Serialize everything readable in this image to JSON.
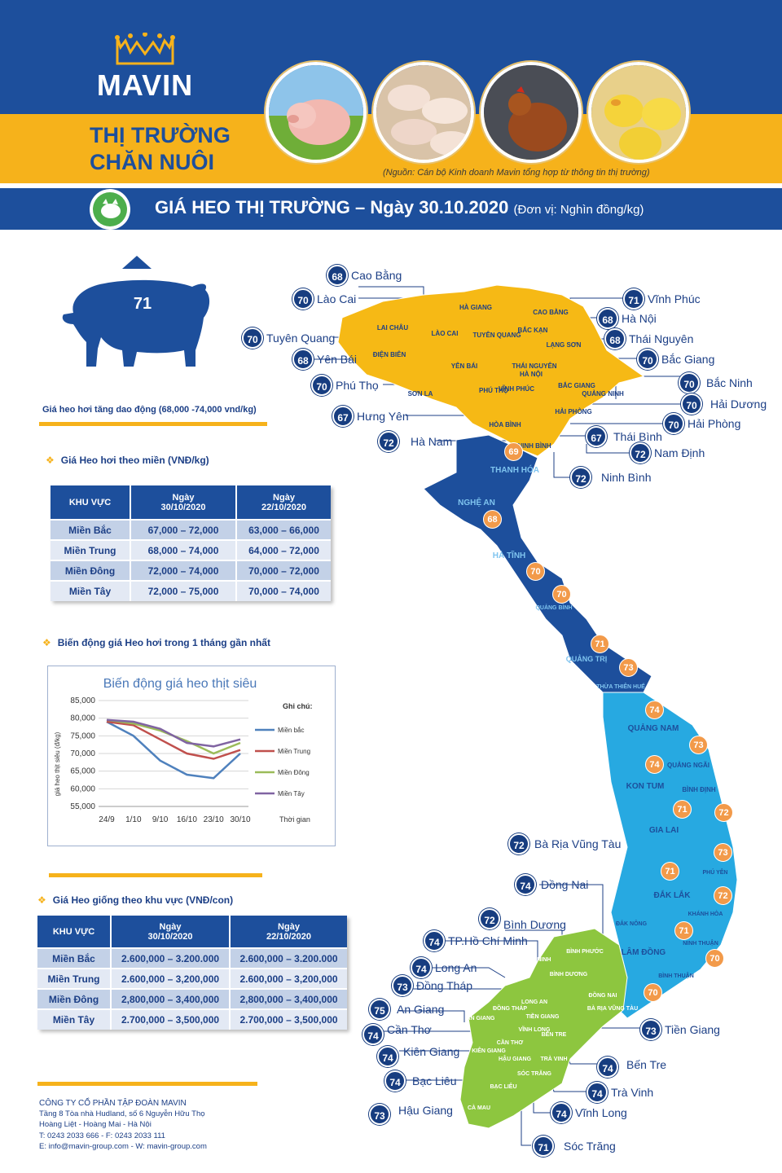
{
  "header": {
    "brand": "MAVIN",
    "title_line1": "THỊ TRƯỜNG",
    "title_line2": "CHĂN NUÔI",
    "source": "(Nguồn: Cán bộ Kinh doanh Mavin tổng hợp từ thông tin thị trường)"
  },
  "title_bar": {
    "title": "GIÁ HEO THỊ TRƯỜNG – Ngày 30.10.2020",
    "unit": "(Đơn vị: Nghìn đồng/kg)"
  },
  "summary": {
    "pig_price": "71",
    "trend_text": "Giá heo hơi tăng dao động (68,000 -74,000 vnd/kg)"
  },
  "region_table": {
    "heading": "Giá Heo hơi theo miền (VNĐ/kg)",
    "col_region": "KHU VỰC",
    "col_date1_line1": "Ngày",
    "col_date1_line2": "30/10/2020",
    "col_date2_line1": "Ngày",
    "col_date2_line2": "22/10/2020",
    "rows": [
      {
        "region": "Miền Bắc",
        "d1": "67,000 – 72,000",
        "d2": "63,000 – 66,000"
      },
      {
        "region": "Miền Trung",
        "d1": "68,000 – 74,000",
        "d2": "64,000 – 72,000"
      },
      {
        "region": "Miền Đông",
        "d1": "72,000 – 74,000",
        "d2": "70,000 – 72,000"
      },
      {
        "region": "Miền Tây",
        "d1": "72,000 – 75,000",
        "d2": "70,000 – 74,000"
      }
    ]
  },
  "chart_section": {
    "heading": "Biến động giá Heo hơi trong 1 tháng gần nhất"
  },
  "chart_data": {
    "type": "line",
    "title": "Biến động giá heo thịt siêu",
    "ylabel": "giá heo thịt siêu (đ/kg)",
    "xlabel": "Thời gian",
    "legend_title": "Ghi chú:",
    "legend_position": "right",
    "ylim": [
      55000,
      85000
    ],
    "y_ticks": [
      "55,000",
      "60,000",
      "65,000",
      "70,000",
      "75,000",
      "80,000",
      "85,000"
    ],
    "y_tick_values": [
      55000,
      60000,
      65000,
      70000,
      75000,
      80000,
      85000
    ],
    "categories": [
      "24/9",
      "1/10",
      "9/10",
      "16/10",
      "23/10",
      "30/10"
    ],
    "grid": true,
    "series": [
      {
        "name": "Miền bắc",
        "color": "#4f81bd",
        "values": [
          79000,
          75000,
          68000,
          64000,
          63000,
          70000
        ]
      },
      {
        "name": "Miền Trung",
        "color": "#c0504d",
        "values": [
          79000,
          78000,
          74000,
          70000,
          68500,
          71000
        ]
      },
      {
        "name": "Miền Đông",
        "color": "#9bbb59",
        "values": [
          79500,
          78500,
          76500,
          73500,
          70000,
          73000
        ]
      },
      {
        "name": "Miền Tây",
        "color": "#8064a2",
        "values": [
          79500,
          79000,
          77000,
          73000,
          72000,
          74000
        ]
      }
    ]
  },
  "breed_table": {
    "heading": "Giá Heo giống theo khu vực (VNĐ/con)",
    "col_region": "KHU VỰC",
    "col_date1_line1": "Ngày",
    "col_date1_line2": "30/10/2020",
    "col_date2_line1": "Ngày",
    "col_date2_line2": "22/10/2020",
    "rows": [
      {
        "region": "Miền Bắc",
        "d1": "2.600,000 – 3.200.000",
        "d2": "2.600,000 – 3.200.000"
      },
      {
        "region": "Miền Trung",
        "d1": "2.600,000 – 3,200,000",
        "d2": "2.600,000 – 3,200,000"
      },
      {
        "region": "Miền Đông",
        "d1": "2,800,000 – 3,400,000",
        "d2": "2,800,000 – 3,400,000"
      },
      {
        "region": "Miền Tây",
        "d1": "2.700,000 – 3,500,000",
        "d2": "2.700,000 – 3,500,000"
      }
    ]
  },
  "footer": {
    "company": "CÔNG TY CỔ PHẦN TẬP ĐOÀN MAVIN",
    "address1": "Tầng 8 Tòa nhà Hudland, số 6 Nguyễn Hữu Thọ",
    "address2": "Hoàng Liệt - Hoàng Mai - Hà Nội",
    "phone": "T: 0243 2033 666 - F: 0243 2033 111",
    "contact": "E: info@mavin-group.com -  W: mavin-group.com"
  },
  "map": {
    "north_provinces": [
      {
        "name": "Cao Bằng",
        "price": "68"
      },
      {
        "name": "Lào Cai",
        "price": "70"
      },
      {
        "name": "Tuyên Quang",
        "price": "70"
      },
      {
        "name": "Yên Bái",
        "price": "68"
      },
      {
        "name": "Phú Thọ",
        "price": "70"
      },
      {
        "name": "Hưng Yên",
        "price": "67"
      },
      {
        "name": "Hà Nam",
        "price": "72"
      },
      {
        "name": "Vĩnh Phúc",
        "price": "71"
      },
      {
        "name": "Hà Nội",
        "price": "68"
      },
      {
        "name": "Thái Nguyên",
        "price": "68"
      },
      {
        "name": "Bắc Giang",
        "price": "70"
      },
      {
        "name": "Bắc Ninh",
        "price": "70"
      },
      {
        "name": "Hải Dương",
        "price": "70"
      },
      {
        "name": "Hải Phòng",
        "price": "70"
      },
      {
        "name": "Thái Bình",
        "price": "67"
      },
      {
        "name": "Nam Định",
        "price": "72"
      },
      {
        "name": "Ninh Bình",
        "price": "72"
      }
    ],
    "south_provinces": [
      {
        "name": "Bà Rịa Vũng Tàu",
        "price": "72"
      },
      {
        "name": "Đồng Nai",
        "price": "74"
      },
      {
        "name": "Bình Dương",
        "price": "72"
      },
      {
        "name": "TP.Hồ Chí Minh",
        "price": "74"
      },
      {
        "name": "Long An",
        "price": "74"
      },
      {
        "name": "Đồng Tháp",
        "price": "73"
      },
      {
        "name": "An Giang",
        "price": "75"
      },
      {
        "name": "Cần Thơ",
        "price": "74"
      },
      {
        "name": "Kiên Giang",
        "price": "74"
      },
      {
        "name": "Bạc Liêu",
        "price": "74"
      },
      {
        "name": "Hậu Giang",
        "price": "73"
      },
      {
        "name": "Tiền Giang",
        "price": "73"
      },
      {
        "name": "Bến Tre",
        "price": "74"
      },
      {
        "name": "Trà Vinh",
        "price": "74"
      },
      {
        "name": "Vĩnh Long",
        "price": "74"
      },
      {
        "name": "Sóc Trăng",
        "price": "71"
      }
    ],
    "central_prices": [
      "69",
      "68",
      "70",
      "70",
      "71",
      "73",
      "74",
      "73",
      "74",
      "71",
      "72",
      "73",
      "71",
      "72",
      "71",
      "70",
      "70"
    ],
    "region_labels": [
      "THANH HÓA",
      "NGHỆ AN",
      "HÀ TĨNH",
      "QUẢNG BÌNH",
      "QUẢNG TRỊ",
      "THỪA THIÊN HUẾ",
      "QUẢNG NAM",
      "QUẢNG NGÃI",
      "KON TUM",
      "BÌNH ĐỊNH",
      "GIA LAI",
      "PHÚ YÊN",
      "ĐẮK LẮK",
      "KHÁNH HÒA",
      "ĐẮK NÔNG",
      "LÂM ĐỒNG",
      "NINH THUẬN",
      "BÌNH THUẬN",
      "BÌNH PHƯỚC",
      "TÂY NINH",
      "BÌNH DƯƠNG",
      "ĐỒNG NAI",
      "LONG AN",
      "ĐỒNG THÁP",
      "AN GIANG",
      "TIỀN GIANG",
      "BẾN TRE",
      "VĨNH LONG",
      "CẦN THƠ",
      "HẬU GIANG",
      "TRÀ VINH",
      "SÓC TRĂNG",
      "KIÊN GIANG",
      "BẠC LIÊU",
      "CÀ MAU",
      "BÀ RỊA VŨNG TÀU"
    ],
    "north_region_labels": [
      "HÀ GIANG",
      "CAO BẰNG",
      "LAI CHÂU",
      "LÀO CAI",
      "TUYÊN QUANG",
      "BẮC KẠN",
      "LẠNG SƠN",
      "ĐIỆN BIÊN",
      "YÊN BÁI",
      "THÁI NGUYÊN",
      "SƠN LA",
      "PHÚ THỌ",
      "VĨNH PHÚC",
      "HÀ NỘI",
      "QUẢNG NINH",
      "BẮC GIANG",
      "HÒA BÌNH",
      "HẢI PHÒNG",
      "NINH BÌNH"
    ]
  }
}
